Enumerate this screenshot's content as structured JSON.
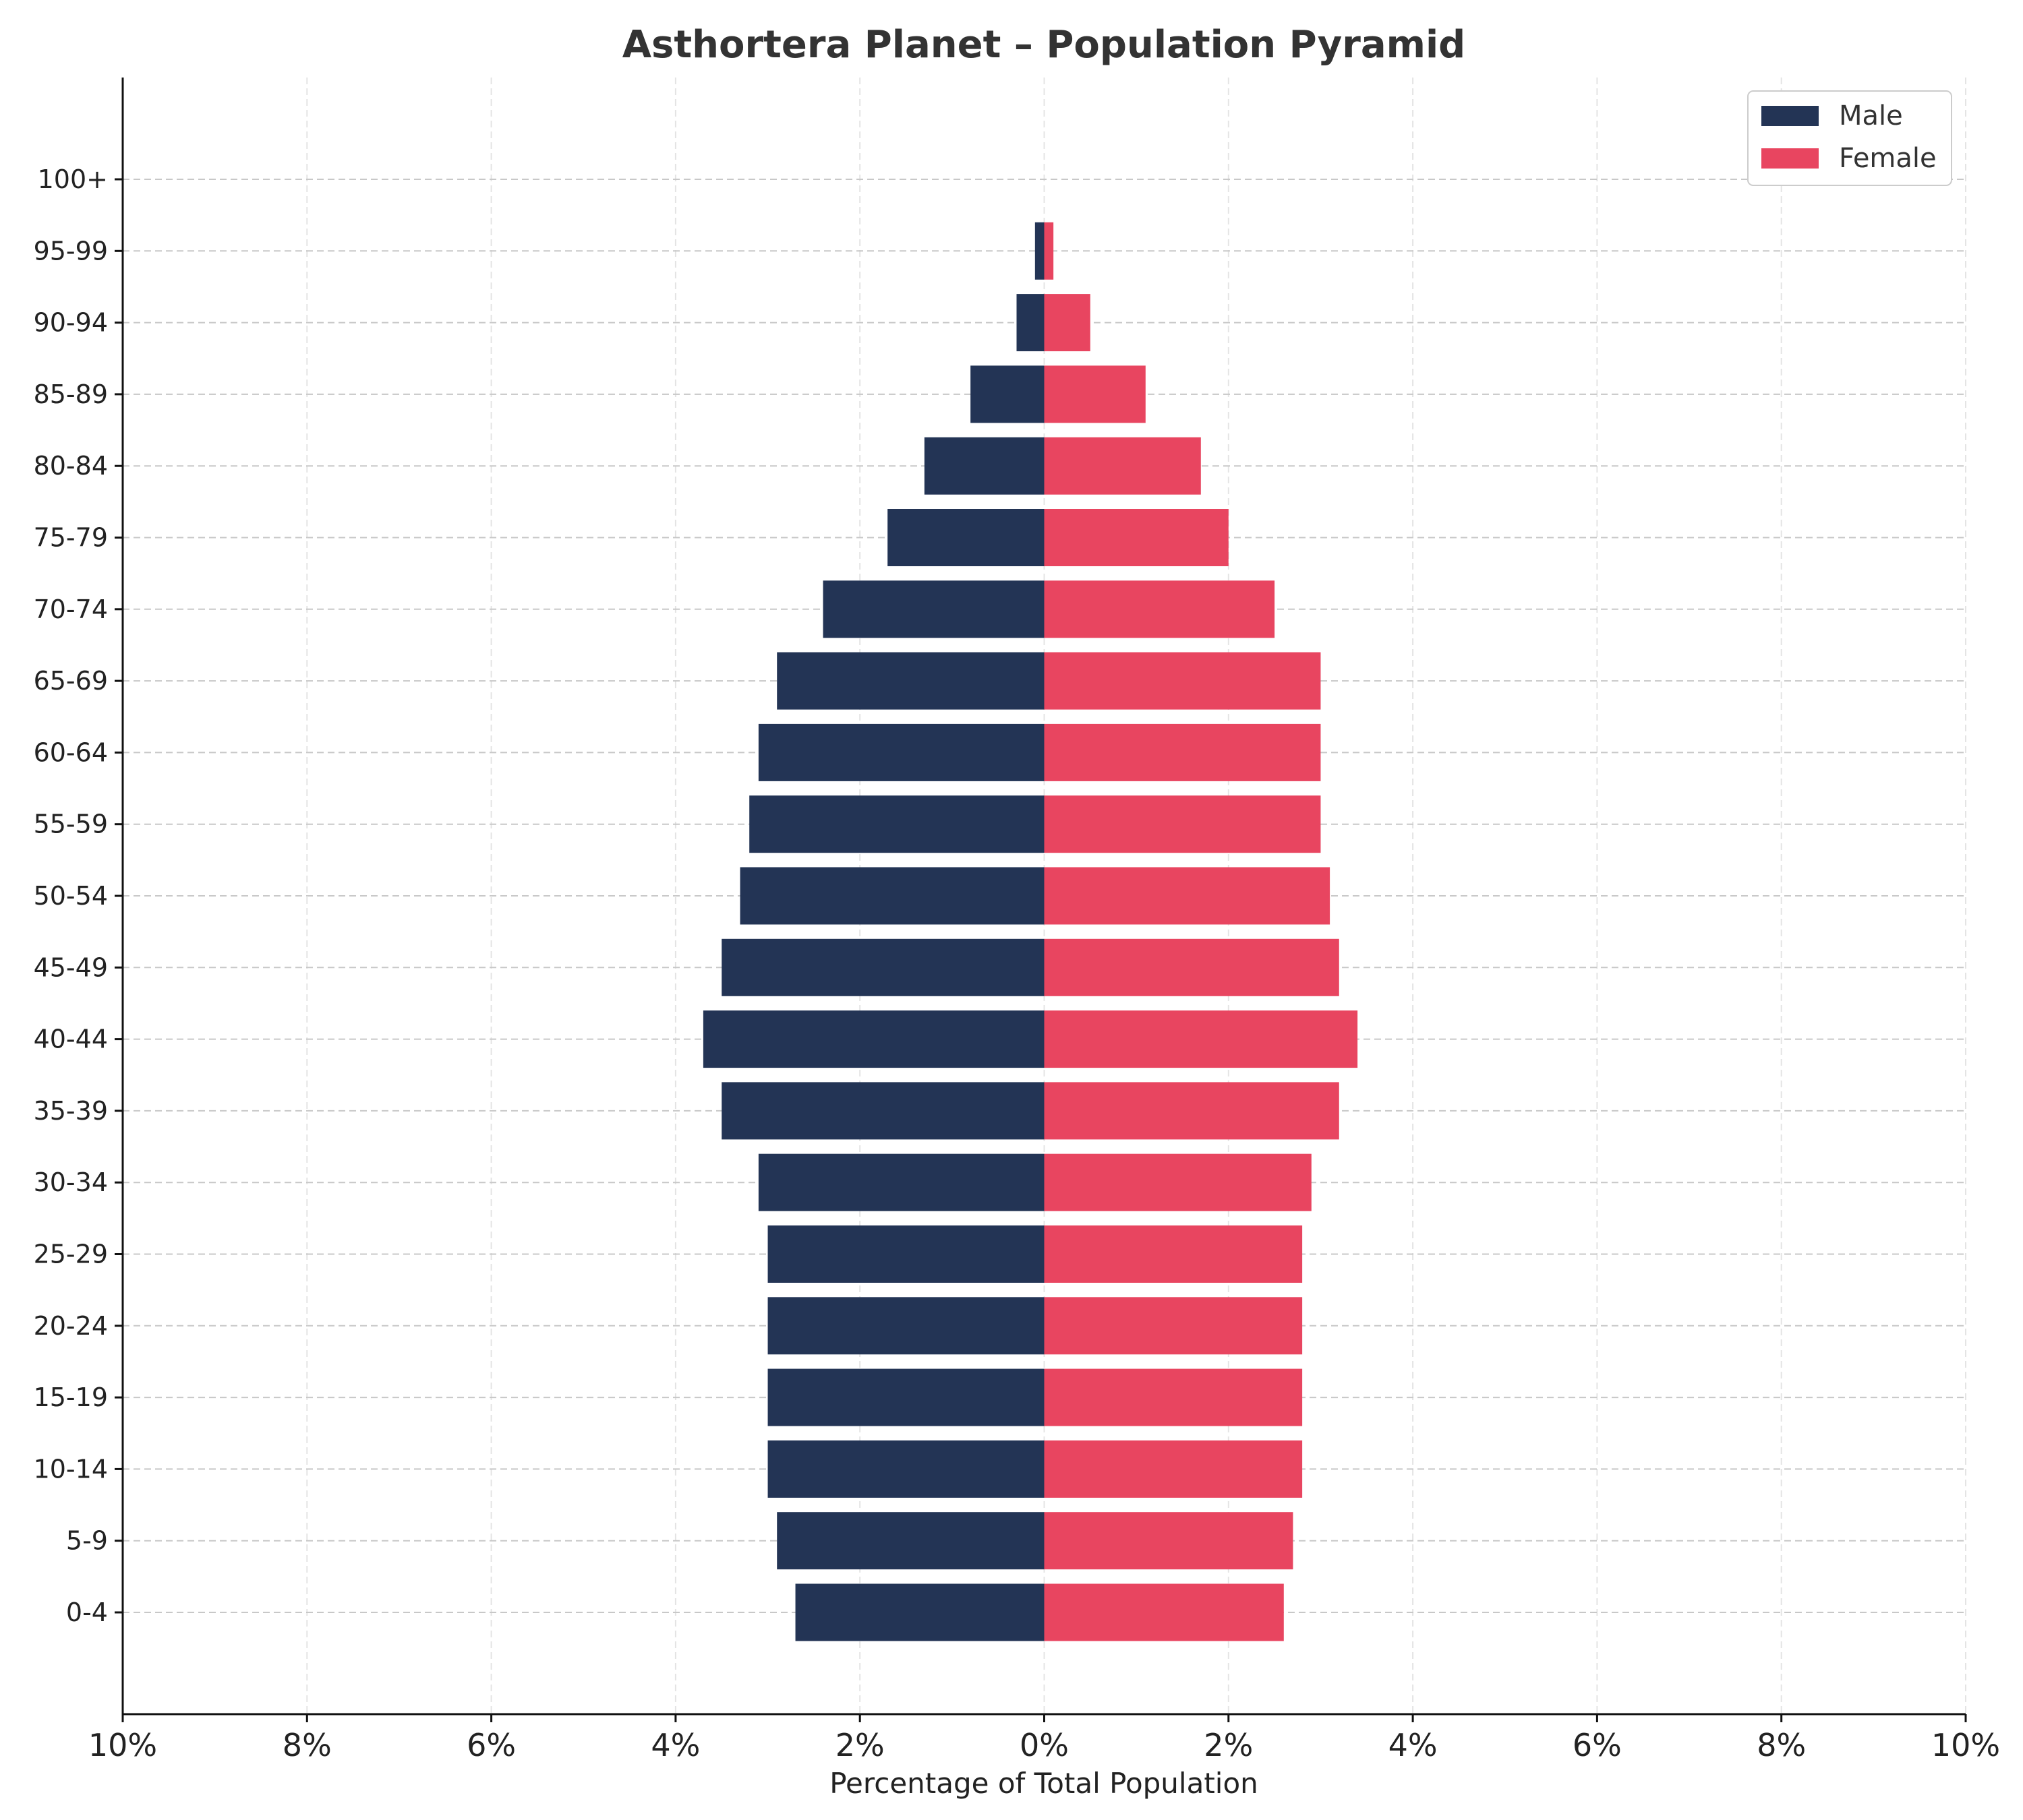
{
  "chart_data": {
    "type": "bar",
    "orientation": "horizontal-pyramid",
    "title": "Asthortera Planet – Population Pyramid",
    "xlabel": "Percentage of Total Population",
    "ylabel": "",
    "xlim": [
      -10,
      10
    ],
    "x_ticks": [
      -10,
      -8,
      -6,
      -4,
      -2,
      0,
      2,
      4,
      6,
      8,
      10
    ],
    "x_tick_labels": [
      "10%",
      "8%",
      "6%",
      "4%",
      "2%",
      "0%",
      "2%",
      "4%",
      "6%",
      "8%",
      "10%"
    ],
    "grid": true,
    "legend_position": "top-right",
    "categories": [
      "0-4",
      "5-9",
      "10-14",
      "15-19",
      "20-24",
      "25-29",
      "30-34",
      "35-39",
      "40-44",
      "45-49",
      "50-54",
      "55-59",
      "60-64",
      "65-69",
      "70-74",
      "75-79",
      "80-84",
      "85-89",
      "90-94",
      "95-99",
      "100+"
    ],
    "series": [
      {
        "name": "Male",
        "color": "#233455",
        "side": "left",
        "values": [
          2.7,
          2.9,
          3.0,
          3.0,
          3.0,
          3.0,
          3.1,
          3.5,
          3.7,
          3.5,
          3.3,
          3.2,
          3.1,
          2.9,
          2.4,
          1.7,
          1.3,
          0.8,
          0.3,
          0.1,
          0.0
        ]
      },
      {
        "name": "Female",
        "color": "#e84560",
        "side": "right",
        "values": [
          2.6,
          2.7,
          2.8,
          2.8,
          2.8,
          2.8,
          2.9,
          3.2,
          3.4,
          3.2,
          3.1,
          3.0,
          3.0,
          3.0,
          2.5,
          2.0,
          1.7,
          1.1,
          0.5,
          0.1,
          0.0
        ]
      }
    ]
  }
}
